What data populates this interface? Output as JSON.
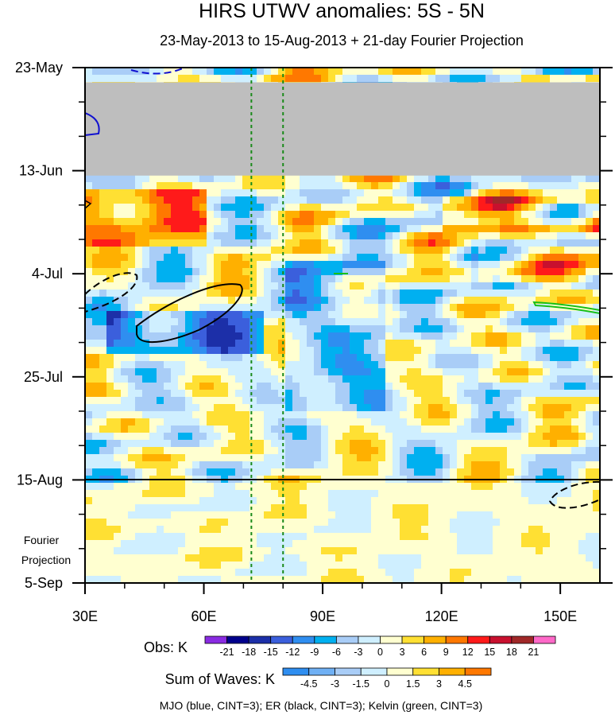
{
  "chart_data": {
    "type": "heatmap",
    "title": "HIRS UTWV anomalies: 5S - 5N",
    "subtitle": "23-May-2013 to 15-Aug-2013 + 21-day Fourier Projection",
    "x_range": [
      30,
      160
    ],
    "x_ticks": [
      {
        "value": 30,
        "label": "30E"
      },
      {
        "value": 60,
        "label": "60E"
      },
      {
        "value": 90,
        "label": "90E"
      },
      {
        "value": 120,
        "label": "120E"
      },
      {
        "value": 150,
        "label": "150E"
      }
    ],
    "y_range_days": [
      0,
      105
    ],
    "y_ticks": [
      {
        "day": 0,
        "label": "23-May"
      },
      {
        "day": 21,
        "label": "13-Jun"
      },
      {
        "day": 42,
        "label": "4-Jul"
      },
      {
        "day": 63,
        "label": "25-Jul"
      },
      {
        "day": 84,
        "label": "15-Aug"
      },
      {
        "day": 105,
        "label": "5-Sep"
      }
    ],
    "projection_start_day": 84,
    "projection_label": [
      "Fourier",
      "Projection"
    ],
    "missing_data": {
      "day_range": [
        3,
        22
      ],
      "color": "#bebebe"
    },
    "reference_lines_lon": [
      72,
      80
    ],
    "obs_colorbar": {
      "title": "Obs: K",
      "levels": [
        "-21",
        "-18",
        "-15",
        "-12",
        "-9",
        "-6",
        "-3",
        "0",
        "3",
        "6",
        "9",
        "12",
        "15",
        "18",
        "21"
      ],
      "colors": [
        "#8a2be2",
        "#00008b",
        "#1c2fa8",
        "#3b5fdc",
        "#2f8ef0",
        "#00b0f0",
        "#a9cdf7",
        "#cfefff",
        "#ffffd0",
        "#ffe033",
        "#ffb000",
        "#ff7800",
        "#ff1a1a",
        "#c8102e",
        "#a02828",
        "#ff69c8"
      ]
    },
    "waves_colorbar": {
      "title": "Sum of Waves: K",
      "levels": [
        "-4.5",
        "-3",
        "-1.5",
        "0",
        "1.5",
        "3",
        "4.5"
      ],
      "colors": [
        "#2f8ef0",
        "#6fb0f4",
        "#a9cdf7",
        "#cfefff",
        "#ffffd0",
        "#ffe033",
        "#ffb000",
        "#ff7800"
      ]
    },
    "footnote": "MJO (blue, CINT=3); ER (black, CINT=3); Kelvin (green, CINT=3)"
  }
}
